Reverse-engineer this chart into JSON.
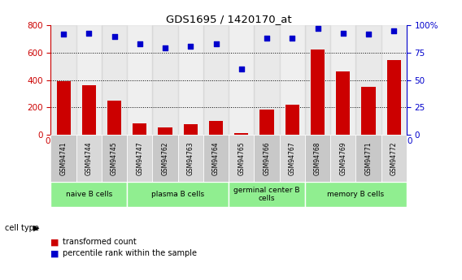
{
  "title": "GDS1695 / 1420170_at",
  "samples": [
    "GSM94741",
    "GSM94744",
    "GSM94745",
    "GSM94747",
    "GSM94762",
    "GSM94763",
    "GSM94764",
    "GSM94765",
    "GSM94766",
    "GSM94767",
    "GSM94768",
    "GSM94769",
    "GSM94771",
    "GSM94772"
  ],
  "transformed_count": [
    390,
    360,
    250,
    85,
    55,
    75,
    100,
    10,
    185,
    220,
    620,
    465,
    350,
    545
  ],
  "percentile_rank": [
    92,
    93,
    90,
    83,
    79,
    81,
    83,
    60,
    88,
    88,
    97,
    93,
    92,
    95
  ],
  "group_ranges": [
    [
      0,
      3
    ],
    [
      3,
      7
    ],
    [
      7,
      10
    ],
    [
      10,
      14
    ]
  ],
  "group_labels": [
    "naive B cells",
    "plasma B cells",
    "germinal center B\ncells",
    "memory B cells"
  ],
  "group_color": "#90ee90",
  "bar_color": "#cc0000",
  "dot_color": "#0000cc",
  "ylim_left": [
    0,
    800
  ],
  "ylim_right": [
    0,
    100
  ],
  "yticks_left": [
    0,
    200,
    400,
    600,
    800
  ],
  "yticks_right": [
    0,
    25,
    50,
    75,
    100
  ],
  "ytick_labels_right": [
    "0",
    "25",
    "50",
    "75",
    "100%"
  ],
  "grid_values": [
    200,
    400,
    600
  ],
  "background_color": "#ffffff",
  "tick_label_color_left": "#cc0000",
  "tick_label_color_right": "#0000cc",
  "col_bg_even": "#c8c8c8",
  "col_bg_odd": "#d8d8d8"
}
